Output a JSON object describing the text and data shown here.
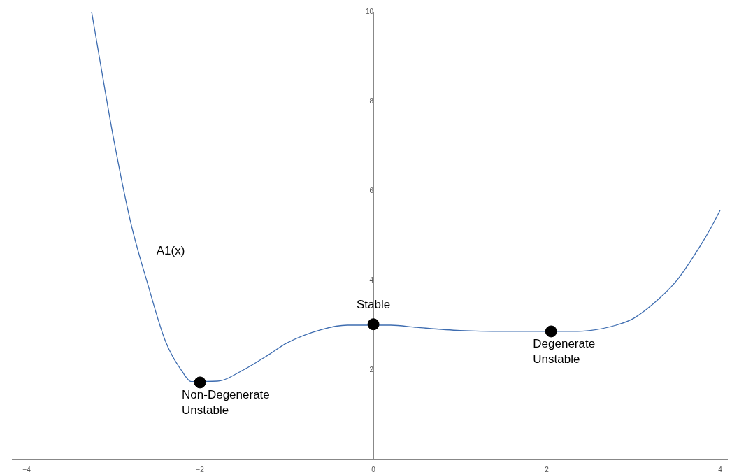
{
  "chart_data": {
    "type": "line",
    "xlim": [
      -4.17,
      4.08
    ],
    "ylim": [
      0,
      10
    ],
    "xticks": [
      -4,
      -2,
      0,
      2,
      4
    ],
    "yticks": [
      2,
      4,
      6,
      8,
      10
    ],
    "grid": false,
    "legend": false,
    "series": [
      {
        "name": "A1(x)",
        "color": "#3d6cb0",
        "marker": "none",
        "x": [
          -3.25,
          -3.1,
          -3.0,
          -2.8,
          -2.6,
          -2.4,
          -2.2,
          -2.1,
          -1.8,
          -1.5,
          -1.2,
          -1.0,
          -0.6,
          -0.3,
          0.2,
          0.5,
          1.0,
          1.5,
          2.3,
          2.5,
          2.8,
          3.0,
          3.3,
          3.52,
          3.76,
          3.9,
          4.0
        ],
        "values": [
          10,
          8.3,
          7.2,
          5.3,
          3.9,
          2.65,
          1.95,
          1.74,
          1.75,
          2.0,
          2.35,
          2.6,
          2.9,
          3.0,
          3.0,
          2.95,
          2.88,
          2.86,
          2.86,
          2.88,
          3.0,
          3.15,
          3.6,
          4.05,
          4.74,
          5.2,
          5.57
        ]
      },
      {
        "type": "scatter",
        "color": "#000000",
        "marker": "circle",
        "x": [
          -2,
          0,
          2.05
        ],
        "values": [
          1.72,
          3.02,
          2.86
        ]
      }
    ],
    "annotations": [
      {
        "text": "Non-Degenerate Unstable",
        "x": -2,
        "y": 1.72
      },
      {
        "text": "Stable",
        "x": 0,
        "y": 3.02
      },
      {
        "text": "Degenerate Unstable",
        "x": 2.05,
        "y": 2.86
      }
    ]
  }
}
